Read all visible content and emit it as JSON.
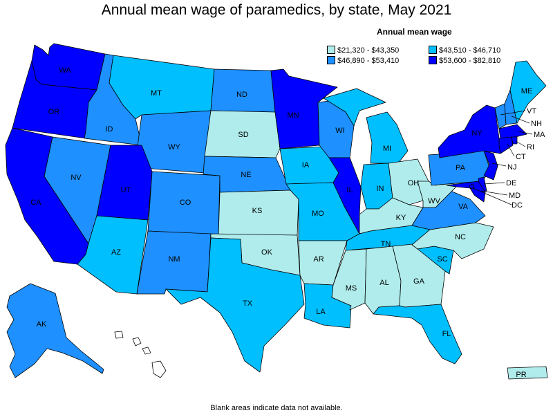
{
  "title": "Annual mean wage of paramedics, by state, May 2021",
  "legend": {
    "title": "Annual mean wage",
    "bins": [
      {
        "key": "b1",
        "label": "$21,320 - $43,350",
        "color": "#b0ecec"
      },
      {
        "key": "b2",
        "label": "$43,510 - $46,710",
        "color": "#00bfff"
      },
      {
        "key": "b3",
        "label": "$46,890 - $53,410",
        "color": "#1e90ff"
      },
      {
        "key": "b4",
        "label": "$53,600 - $82,810",
        "color": "#0000ff"
      }
    ]
  },
  "footnote": "Blank areas indicate data not available.",
  "states": [
    {
      "abbr": "WA",
      "bin": "b4"
    },
    {
      "abbr": "OR",
      "bin": "b4"
    },
    {
      "abbr": "CA",
      "bin": "b4"
    },
    {
      "abbr": "ID",
      "bin": "b3"
    },
    {
      "abbr": "NV",
      "bin": "b3"
    },
    {
      "abbr": "MT",
      "bin": "b2"
    },
    {
      "abbr": "WY",
      "bin": "b3"
    },
    {
      "abbr": "UT",
      "bin": "b4"
    },
    {
      "abbr": "AZ",
      "bin": "b2"
    },
    {
      "abbr": "CO",
      "bin": "b3"
    },
    {
      "abbr": "NM",
      "bin": "b3"
    },
    {
      "abbr": "ND",
      "bin": "b3"
    },
    {
      "abbr": "SD",
      "bin": "b1"
    },
    {
      "abbr": "NE",
      "bin": "b3"
    },
    {
      "abbr": "KS",
      "bin": "b1"
    },
    {
      "abbr": "OK",
      "bin": "b1"
    },
    {
      "abbr": "TX",
      "bin": "b2"
    },
    {
      "abbr": "MN",
      "bin": "b4"
    },
    {
      "abbr": "IA",
      "bin": "b2"
    },
    {
      "abbr": "MO",
      "bin": "b2"
    },
    {
      "abbr": "AR",
      "bin": "b1"
    },
    {
      "abbr": "LA",
      "bin": "b2"
    },
    {
      "abbr": "WI",
      "bin": "b3"
    },
    {
      "abbr": "IL",
      "bin": "b4"
    },
    {
      "abbr": "MI",
      "bin": "b2"
    },
    {
      "abbr": "IN",
      "bin": "b2"
    },
    {
      "abbr": "OH",
      "bin": "b1"
    },
    {
      "abbr": "KY",
      "bin": "b1"
    },
    {
      "abbr": "TN",
      "bin": "b2"
    },
    {
      "abbr": "MS",
      "bin": "b1"
    },
    {
      "abbr": "AL",
      "bin": "b1"
    },
    {
      "abbr": "GA",
      "bin": "b1"
    },
    {
      "abbr": "FL",
      "bin": "b2"
    },
    {
      "abbr": "SC",
      "bin": "b2"
    },
    {
      "abbr": "NC",
      "bin": "b1"
    },
    {
      "abbr": "VA",
      "bin": "b3"
    },
    {
      "abbr": "WV",
      "bin": "b1"
    },
    {
      "abbr": "PA",
      "bin": "b3"
    },
    {
      "abbr": "NY",
      "bin": "b4"
    },
    {
      "abbr": "VT",
      "bin": "b3"
    },
    {
      "abbr": "NH",
      "bin": "b3"
    },
    {
      "abbr": "ME",
      "bin": "b2"
    },
    {
      "abbr": "MA",
      "bin": "b4"
    },
    {
      "abbr": "RI",
      "bin": "b4"
    },
    {
      "abbr": "CT",
      "bin": "b4"
    },
    {
      "abbr": "NJ",
      "bin": "b4"
    },
    {
      "abbr": "DE",
      "bin": "b4"
    },
    {
      "abbr": "MD",
      "bin": "b4"
    },
    {
      "abbr": "DC",
      "bin": "b4"
    },
    {
      "abbr": "AK",
      "bin": "b3"
    },
    {
      "abbr": "HI",
      "bin": null
    },
    {
      "abbr": "PR",
      "bin": "b1"
    }
  ]
}
